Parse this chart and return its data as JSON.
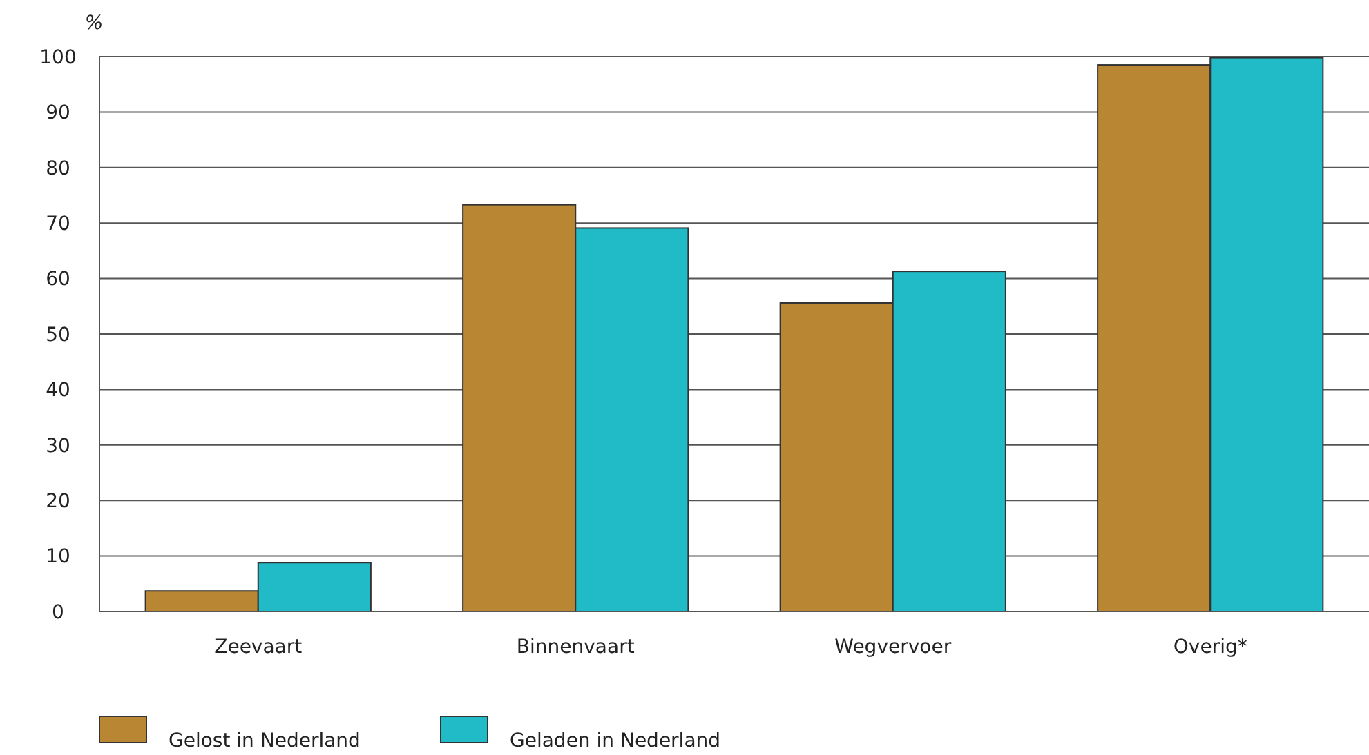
{
  "chart_data": {
    "type": "bar",
    "ylabel": "%",
    "categories": [
      "Zeevaart",
      "Binnenvaart",
      "Wegvervoer",
      "Overig*"
    ],
    "series": [
      {
        "name": "Gelost in Nederland",
        "color": "#b98734",
        "values": [
          3.7,
          73.3,
          55.6,
          98.5
        ]
      },
      {
        "name": "Geladen in Nederland",
        "color": "#20bbc6",
        "values": [
          8.8,
          69.1,
          61.3,
          99.8
        ]
      }
    ],
    "ylim": [
      0,
      100
    ],
    "yticks": [
      0,
      10,
      20,
      30,
      40,
      50,
      60,
      70,
      80,
      90,
      100
    ],
    "grid": "y",
    "legend": "bottom left"
  }
}
